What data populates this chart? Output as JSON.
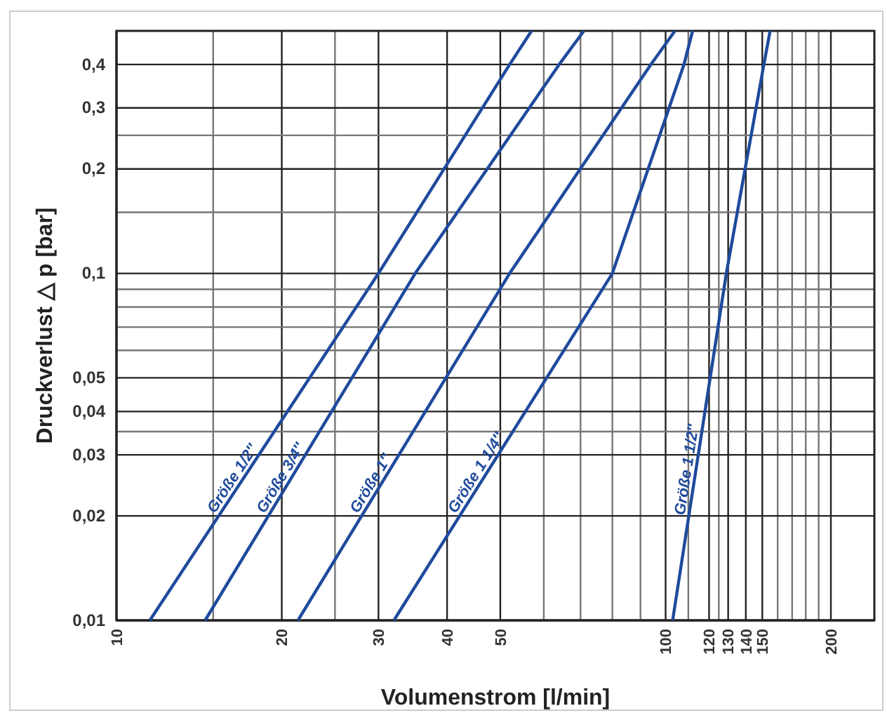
{
  "chart_data": {
    "type": "line",
    "xlabel": "Volumenstrom [l/min]",
    "ylabel": "Druckverlust △ p [bar]",
    "log": "xy",
    "grid": true,
    "legend": false,
    "line_style": "solid",
    "marker": "none",
    "xlim": [
      10,
      240
    ],
    "xticks": [
      10,
      {
        "value": 15,
        "label": null
      },
      20,
      {
        "value": 25,
        "label": null
      },
      30,
      40,
      50,
      {
        "value": 60,
        "label": null
      },
      {
        "value": 70,
        "label": null
      },
      {
        "value": 80,
        "label": null
      },
      {
        "value": 90,
        "label": null
      },
      100,
      {
        "value": 110,
        "label": null
      },
      120,
      {
        "value": 125,
        "label": null
      },
      130,
      140,
      150,
      {
        "value": 160,
        "label": null
      },
      {
        "value": 170,
        "label": null
      },
      {
        "value": 180,
        "label": null
      },
      {
        "value": 190,
        "label": null
      },
      200
    ],
    "ylim": [
      0.01,
      0.5
    ],
    "yticks": [
      {
        "value": 0.01,
        "label": "0,01"
      },
      {
        "value": 0.02,
        "label": "0,02"
      },
      {
        "value": 0.03,
        "label": "0,03"
      },
      {
        "value": 0.035,
        "label": null
      },
      {
        "value": 0.04,
        "label": "0,04"
      },
      {
        "value": 0.05,
        "label": "0,05"
      },
      {
        "value": 0.06,
        "label": null
      },
      {
        "value": 0.07,
        "label": null
      },
      {
        "value": 0.08,
        "label": null
      },
      {
        "value": 0.09,
        "label": null
      },
      {
        "value": 0.1,
        "label": "0,1"
      },
      {
        "value": 0.15,
        "label": null
      },
      {
        "value": 0.2,
        "label": "0,2"
      },
      {
        "value": 0.25,
        "label": null
      },
      {
        "value": 0.3,
        "label": "0,3"
      },
      {
        "value": 0.4,
        "label": "0,4"
      }
    ],
    "series": [
      {
        "name": "Größe 1/2″",
        "color": "#1f4a9c",
        "x": [
          11.5,
          30,
          52,
          57
        ],
        "values": [
          0.01,
          0.1,
          0.4,
          0.5
        ]
      },
      {
        "name": "Größe 3/4″",
        "color": "#1f4a9c",
        "x": [
          14.5,
          35,
          64,
          71
        ],
        "values": [
          0.01,
          0.1,
          0.4,
          0.5
        ]
      },
      {
        "name": "Größe 1″",
        "color": "#1f4a9c",
        "x": [
          21.4,
          52,
          94,
          104
        ],
        "values": [
          0.01,
          0.1,
          0.4,
          0.5
        ]
      },
      {
        "name": "Größe 1 1/4″",
        "color": "#1f4a9c",
        "x": [
          32,
          80,
          108,
          112
        ],
        "values": [
          0.01,
          0.1,
          0.4,
          0.5
        ]
      },
      {
        "name": "Größe 1 1/2″",
        "color": "#1f4a9c",
        "x": [
          103,
          129,
          151,
          155
        ],
        "values": [
          0.01,
          0.1,
          0.4,
          0.5
        ]
      }
    ]
  }
}
